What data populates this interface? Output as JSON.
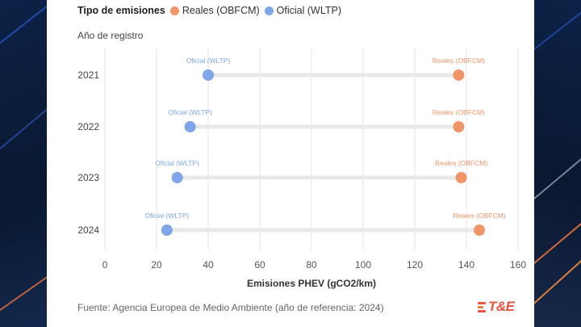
{
  "legend": {
    "title": "Tipo de emisiones",
    "items": [
      {
        "label": "Reales (OBFCM)",
        "color": "#f0956a"
      },
      {
        "label": "Oficial (WLTP)",
        "color": "#7ea6e9"
      }
    ]
  },
  "chart_data": {
    "type": "dumbbell",
    "ylabel": "Año de registro",
    "xlabel": "Emisiones PHEV (gCO2/km)",
    "xlim": [
      0,
      160
    ],
    "xticks": [
      "0",
      "20",
      "40",
      "60",
      "80",
      "100",
      "120",
      "140",
      "160"
    ],
    "grid": true,
    "legend_position": "top-left",
    "categories": [
      "2021",
      "2022",
      "2023",
      "2024"
    ],
    "series": [
      {
        "name": "Oficial (WLTP)",
        "color": "#7ea6e9",
        "values": [
          40,
          33,
          28,
          24
        ]
      },
      {
        "name": "Reales (OBFCM)",
        "color": "#f0956a",
        "values": [
          137,
          137,
          138,
          145
        ]
      }
    ],
    "connector_color": "#e8e8e8"
  },
  "footer": {
    "source": "Fuente: Agencia Europea de Medio Ambiente (año de referencia: 2024)",
    "logo_text": "T&E",
    "logo_color": "#e8553c",
    "logo_stripe_colors": [
      "#e8553c",
      "#f07a3a",
      "#f5a23c",
      "#e8553c"
    ]
  }
}
